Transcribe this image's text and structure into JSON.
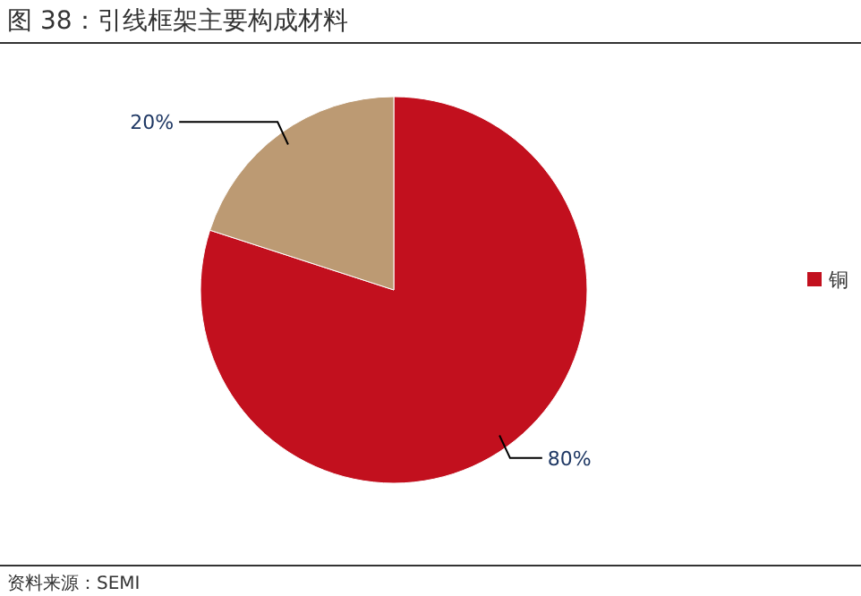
{
  "chart_data": {
    "type": "pie",
    "title": "图 38：引线框架主要构成材料",
    "categories": [
      "铜",
      null
    ],
    "values": [
      80,
      20
    ],
    "colors": [
      "#c2101e",
      "#bc9a73"
    ],
    "value_labels": [
      "80%",
      "20%"
    ],
    "legend": "right",
    "annotations": [
      "资料来源：SEMI"
    ]
  }
}
